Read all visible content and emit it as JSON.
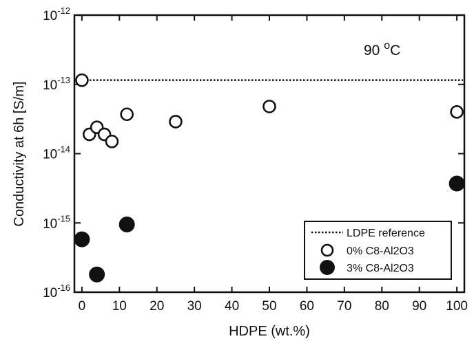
{
  "chart_data": {
    "type": "scatter",
    "xlabel": "HDPE (wt.%)",
    "ylabel": "Conductivity at 6h [S/m]",
    "xlim": [
      -2,
      102
    ],
    "ylim": [
      1e-16,
      1e-12
    ],
    "yscale": "log",
    "x_ticks": [
      "0",
      "10",
      "20",
      "30",
      "40",
      "50",
      "60",
      "70",
      "80",
      "90",
      "100"
    ],
    "y_ticks": [
      {
        "base": "10",
        "exp": "-16",
        "value": 1e-16
      },
      {
        "base": "10",
        "exp": "-15",
        "value": 1e-15
      },
      {
        "base": "10",
        "exp": "-14",
        "value": 1e-14
      },
      {
        "base": "10",
        "exp": "-13",
        "value": 1e-13
      },
      {
        "base": "10",
        "exp": "-12",
        "value": 1e-12
      }
    ],
    "annotation": {
      "text": "90 ",
      "sup": "o",
      "suffix": "C"
    },
    "reference_line": {
      "name": "LDPE reference",
      "y": 1.15e-13,
      "style": "dotted"
    },
    "series": [
      {
        "name": "0% C8-Al2O3",
        "marker": "open-circle",
        "x": [
          0,
          2,
          4,
          6,
          8,
          12,
          25,
          50,
          100
        ],
        "y": [
          1.15e-13,
          1.9e-14,
          2.4e-14,
          1.9e-14,
          1.5e-14,
          3.7e-14,
          2.9e-14,
          4.8e-14,
          4e-14
        ]
      },
      {
        "name": "3% C8-Al2O3",
        "marker": "filled-circle",
        "x": [
          0,
          4,
          12,
          100
        ],
        "y": [
          5.8e-16,
          1.8e-16,
          9.5e-16,
          3.7e-15
        ]
      }
    ],
    "legend_position": "bottom-right",
    "grid": false
  }
}
